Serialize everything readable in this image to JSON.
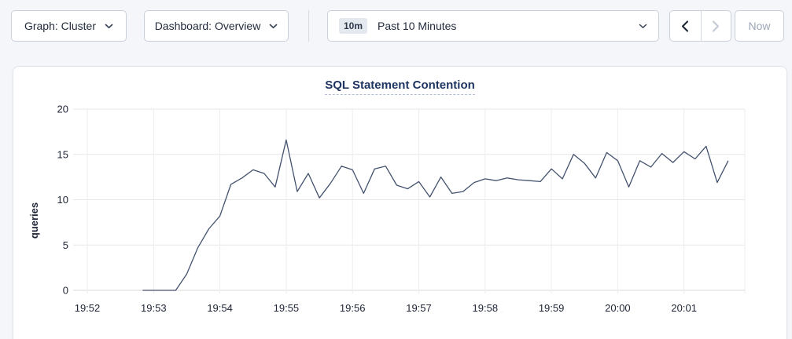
{
  "toolbar": {
    "graph_dropdown": {
      "label": "Graph: Cluster"
    },
    "dashboard_dropdown": {
      "label": "Dashboard: Overview"
    },
    "time_picker": {
      "badge": "10m",
      "label": "Past 10 Minutes"
    },
    "now_button": {
      "label": "Now",
      "disabled": true
    },
    "prev_button": {
      "disabled": false
    },
    "next_button": {
      "disabled": true
    }
  },
  "chart_data": {
    "type": "line",
    "title": "SQL Statement Contention",
    "ylabel": "queries",
    "ylim": [
      0,
      20
    ],
    "yticks": [
      0,
      5,
      10,
      15,
      20
    ],
    "x_tick_labels": [
      "19:52",
      "19:53",
      "19:54",
      "19:55",
      "19:56",
      "19:57",
      "19:58",
      "19:59",
      "20:00",
      "20:01"
    ],
    "grid": true,
    "legend": false,
    "series": [
      {
        "name": "queries",
        "color": "#44526e",
        "start_time": "19:52:50",
        "interval_seconds": 10,
        "values": [
          0,
          0,
          0,
          0,
          1.8,
          4.7,
          6.8,
          8.2,
          11.7,
          12.4,
          13.3,
          12.9,
          11.4,
          16.6,
          10.9,
          12.9,
          10.2,
          11.8,
          13.7,
          13.3,
          10.7,
          13.4,
          13.7,
          11.6,
          11.2,
          12.0,
          10.3,
          12.5,
          10.7,
          10.9,
          11.9,
          12.3,
          12.1,
          12.4,
          12.2,
          12.1,
          12.0,
          13.4,
          12.3,
          15.0,
          14.0,
          12.4,
          15.2,
          14.3,
          11.4,
          14.3,
          13.6,
          15.1,
          14.1,
          15.3,
          14.5,
          15.9,
          11.9,
          14.3
        ]
      }
    ]
  },
  "colors": {
    "page_bg": "#f4f6fa",
    "card_bg": "#ffffff",
    "line": "#44526e",
    "grid_h": "#e7e7e7",
    "grid_v": "#ededed",
    "axis_zero": "#d9d9d9",
    "title": "#1e3462",
    "disabled_text": "#9ba6b5"
  }
}
